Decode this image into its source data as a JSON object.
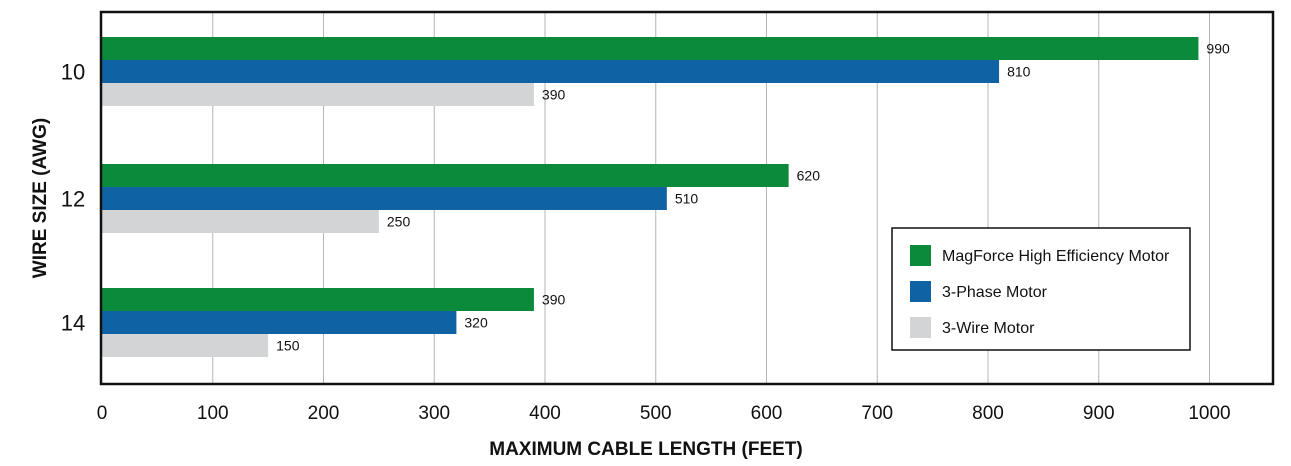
{
  "chart_data": {
    "type": "bar",
    "orientation": "horizontal",
    "categories": [
      "10",
      "12",
      "14"
    ],
    "series": [
      {
        "name": "MagForce High Efficiency Motor",
        "values": [
          990,
          620,
          390
        ],
        "color": "#0a8a3a"
      },
      {
        "name": "3-Phase Motor",
        "values": [
          810,
          510,
          320
        ],
        "color": "#0f63a4"
      },
      {
        "name": "3-Wire Motor",
        "values": [
          390,
          250,
          150
        ],
        "color": "#d3d4d6"
      }
    ],
    "xlabel": "MAXIMUM CABLE LENGTH (FEET)",
    "ylabel": "WIRE SIZE (AWG)",
    "xlim": [
      0,
      1000
    ],
    "xticks": [
      "0",
      "100",
      "200",
      "300",
      "400",
      "500",
      "600",
      "700",
      "800",
      "900",
      "1000"
    ],
    "grid": "vertical",
    "legend_position": "bottom-right"
  }
}
